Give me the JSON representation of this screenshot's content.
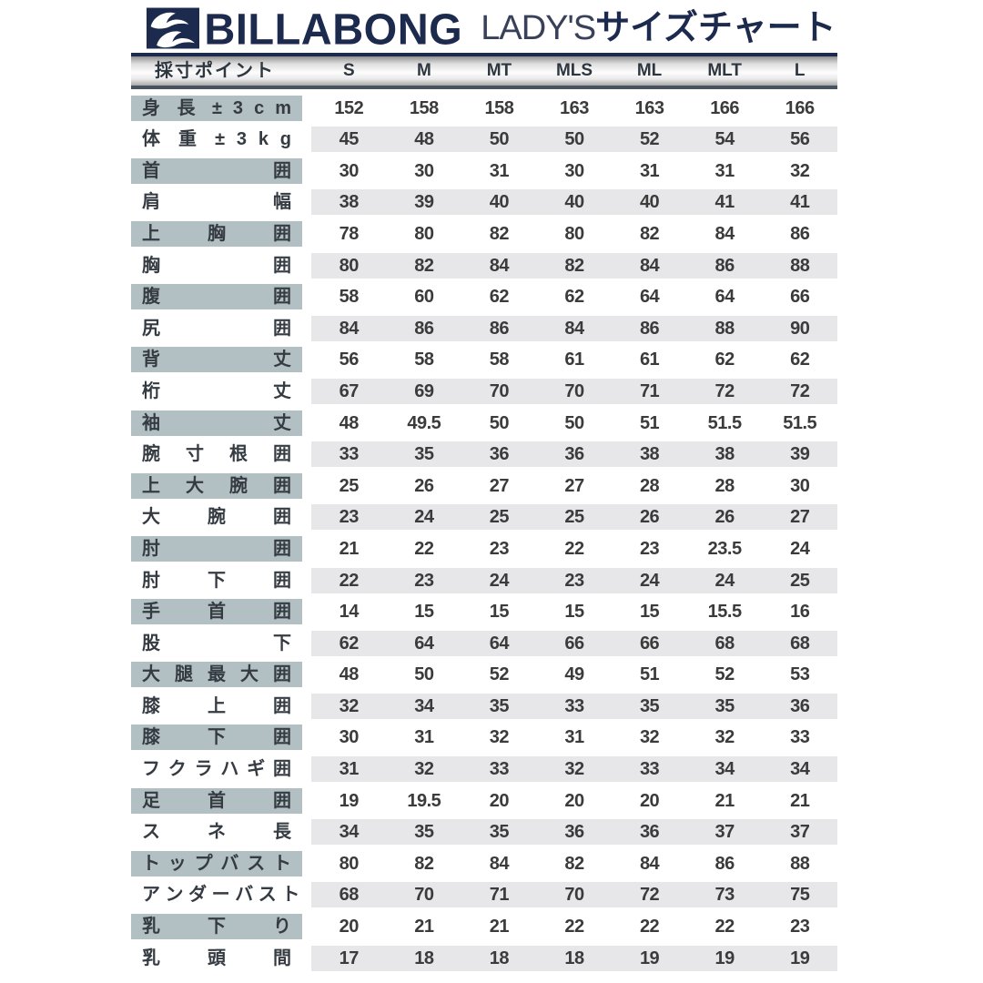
{
  "header": {
    "brand": "BILLABONG",
    "title_latin": "LADY'S",
    "title_jp": "サイズチャート"
  },
  "chart_data": {
    "type": "table",
    "title": "LADY'S サイズチャート",
    "corner_header": "採寸ポイント",
    "columns": [
      "S",
      "M",
      "MT",
      "MLS",
      "ML",
      "MLT",
      "L"
    ],
    "rows": [
      {
        "label": "身 長 ± 3 c m",
        "values": [
          152,
          158,
          158,
          163,
          163,
          166,
          166
        ]
      },
      {
        "label": "体 重 ± 3 k g",
        "values": [
          45,
          48,
          50,
          50,
          52,
          54,
          56
        ]
      },
      {
        "label": "首 囲",
        "values": [
          30,
          30,
          31,
          30,
          31,
          31,
          32
        ]
      },
      {
        "label": "肩 幅",
        "values": [
          38,
          39,
          40,
          40,
          40,
          41,
          41
        ]
      },
      {
        "label": "上 胸 囲",
        "values": [
          78,
          80,
          82,
          80,
          82,
          84,
          86
        ]
      },
      {
        "label": "胸 囲",
        "values": [
          80,
          82,
          84,
          82,
          84,
          86,
          88
        ]
      },
      {
        "label": "腹 囲",
        "values": [
          58,
          60,
          62,
          62,
          64,
          64,
          66
        ]
      },
      {
        "label": "尻 囲",
        "values": [
          84,
          86,
          86,
          84,
          86,
          88,
          90
        ]
      },
      {
        "label": "背 丈",
        "values": [
          56,
          58,
          58,
          61,
          61,
          62,
          62
        ]
      },
      {
        "label": "桁 丈",
        "values": [
          67,
          69,
          70,
          70,
          71,
          72,
          72
        ]
      },
      {
        "label": "袖 丈",
        "values": [
          48,
          49.5,
          50,
          50,
          51,
          51.5,
          51.5
        ]
      },
      {
        "label": "腕 寸 根 囲",
        "values": [
          33,
          35,
          36,
          36,
          38,
          38,
          39
        ]
      },
      {
        "label": "上 大 腕 囲",
        "values": [
          25,
          26,
          27,
          27,
          28,
          28,
          30
        ]
      },
      {
        "label": "大 腕 囲",
        "values": [
          23,
          24,
          25,
          25,
          26,
          26,
          27
        ]
      },
      {
        "label": "肘 囲",
        "values": [
          21,
          22,
          23,
          22,
          23,
          23.5,
          24
        ]
      },
      {
        "label": "肘 下 囲",
        "values": [
          22,
          23,
          24,
          23,
          24,
          24,
          25
        ]
      },
      {
        "label": "手 首 囲",
        "values": [
          14,
          15,
          15,
          15,
          15,
          15.5,
          16
        ]
      },
      {
        "label": "股 下",
        "values": [
          62,
          64,
          64,
          66,
          66,
          68,
          68
        ]
      },
      {
        "label": "大 腿 最 大 囲",
        "values": [
          48,
          50,
          52,
          49,
          51,
          52,
          53
        ]
      },
      {
        "label": "膝 上 囲",
        "values": [
          32,
          34,
          35,
          33,
          35,
          35,
          36
        ]
      },
      {
        "label": "膝 下 囲",
        "values": [
          30,
          31,
          32,
          31,
          32,
          32,
          33
        ]
      },
      {
        "label": "フ ク ラ ハ ギ 囲",
        "values": [
          31,
          32,
          33,
          32,
          33,
          34,
          34
        ]
      },
      {
        "label": "足 首 囲",
        "values": [
          19,
          19.5,
          20,
          20,
          20,
          21,
          21
        ]
      },
      {
        "label": "ス ネ 長",
        "values": [
          34,
          35,
          35,
          36,
          36,
          37,
          37
        ]
      },
      {
        "label": "ト ッ プ バ ス ト",
        "values": [
          80,
          82,
          84,
          82,
          84,
          86,
          88
        ]
      },
      {
        "label": "ア ン ダ ー バ ス ト",
        "values": [
          68,
          70,
          71,
          70,
          72,
          73,
          75
        ]
      },
      {
        "label": "乳 下 り",
        "values": [
          20,
          21,
          21,
          22,
          22,
          22,
          23
        ]
      },
      {
        "label": "乳 頭 間",
        "values": [
          17,
          18,
          18,
          18,
          19,
          19,
          19
        ]
      }
    ]
  },
  "colors": {
    "brand_navy": "#1c2a4d",
    "label_bg": "#b2c0c4",
    "stripe_bg": "#e7e7e9",
    "text_dark": "#353b42"
  }
}
